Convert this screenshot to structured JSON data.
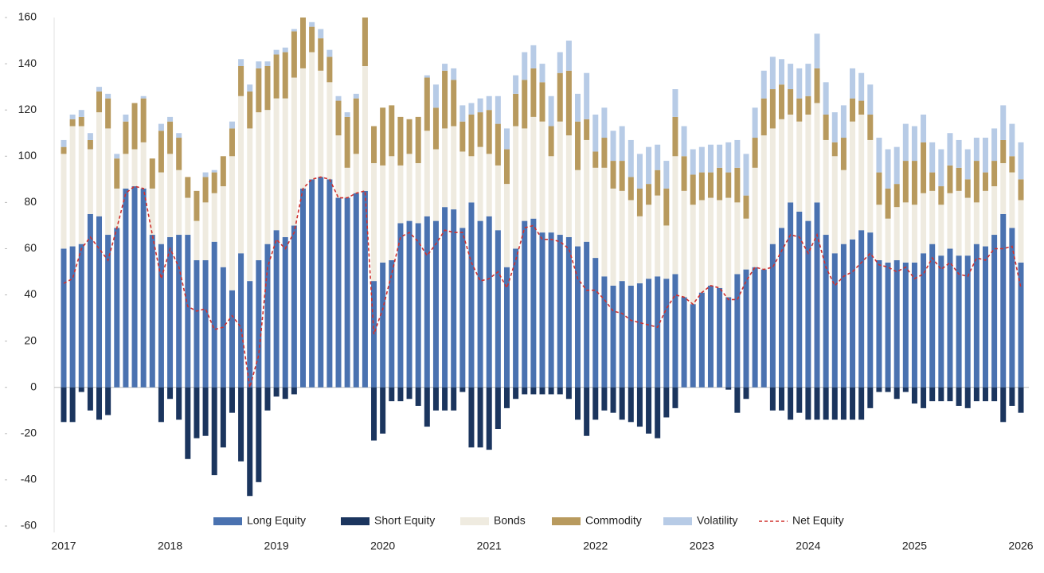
{
  "chart_data": {
    "type": "bar",
    "stacked": true,
    "legend": "bottom",
    "categories": [
      "2017",
      null,
      null,
      null,
      null,
      null,
      null,
      null,
      null,
      null,
      null,
      null,
      "2018",
      null,
      null,
      null,
      null,
      null,
      null,
      null,
      null,
      null,
      null,
      null,
      "2019",
      null,
      null,
      null,
      null,
      null,
      null,
      null,
      null,
      null,
      null,
      null,
      "2020",
      null,
      null,
      null,
      null,
      null,
      null,
      null,
      null,
      null,
      null,
      null,
      "2021",
      null,
      null,
      null,
      null,
      null,
      null,
      null,
      null,
      null,
      null,
      null,
      "2022",
      null,
      null,
      null,
      null,
      null,
      null,
      null,
      null,
      null,
      null,
      null,
      "2023",
      null,
      null,
      null,
      null,
      null,
      null,
      null,
      null,
      null,
      null,
      null,
      "2024",
      null,
      null,
      null,
      null,
      null,
      null,
      null,
      null,
      null,
      null,
      null,
      "2025",
      null,
      null,
      null,
      null,
      null,
      null,
      null,
      null,
      null,
      null,
      null,
      "2026"
    ],
    "ylim": [
      -60,
      160
    ],
    "yticks": [
      -60,
      -40,
      -20,
      0,
      20,
      40,
      60,
      80,
      100,
      120,
      140,
      160
    ],
    "series": [
      {
        "name": "Long Equity",
        "color": "#4a72b0",
        "values": [
          60,
          61,
          62,
          75,
          74,
          66,
          69,
          86,
          87,
          86,
          66,
          62,
          65,
          66,
          66,
          55,
          55,
          63,
          52,
          42,
          58,
          46,
          55,
          62,
          68,
          65,
          70,
          86,
          90,
          91,
          90,
          82,
          82,
          84,
          85,
          46,
          54,
          55,
          71,
          72,
          71,
          74,
          72,
          78,
          77,
          69,
          80,
          72,
          74,
          68,
          52,
          60,
          72,
          73,
          67,
          67,
          66,
          65,
          61,
          63,
          56,
          48,
          44,
          46,
          44,
          45,
          47,
          48,
          47,
          49,
          39,
          36,
          41,
          44,
          43,
          39,
          49,
          51,
          52,
          51,
          62,
          69,
          80,
          76,
          72,
          80,
          66,
          58,
          62,
          64,
          68,
          67,
          55,
          54,
          55,
          54,
          54,
          58,
          62,
          57,
          60,
          57,
          57,
          62,
          61,
          66,
          75,
          69,
          54
        ]
      },
      {
        "name": "Short Equity",
        "color": "#1b355e",
        "values": [
          -15,
          -15,
          -2,
          -10,
          -14,
          -12,
          0,
          0,
          0,
          0,
          0,
          -15,
          -5,
          -14,
          -31,
          -22,
          -21,
          -38,
          -26,
          -11,
          -32,
          -47,
          -41,
          -10,
          -4,
          -5,
          -3,
          0,
          0,
          0,
          0,
          0,
          0,
          0,
          0,
          -23,
          -20,
          -6,
          -6,
          -5,
          -8,
          -17,
          -10,
          -10,
          -10,
          -2,
          -26,
          -26,
          -27,
          -18,
          -9,
          -5,
          -3,
          -3,
          -3,
          -3,
          -3,
          -5,
          -14,
          -21,
          -14,
          -10,
          -11,
          -14,
          -15,
          -17,
          -20,
          -22,
          -13,
          -9,
          0,
          0,
          0,
          0,
          0,
          -1,
          -11,
          -5,
          0,
          0,
          -10,
          -10,
          -14,
          -11,
          -14,
          -14,
          -14,
          -14,
          -14,
          -14,
          -14,
          -9,
          -2,
          -2,
          -5,
          -2,
          -7,
          -9,
          -6,
          -6,
          -6,
          -8,
          -9,
          -6,
          -6,
          -6,
          -15,
          -8,
          -11
        ]
      },
      {
        "name": "Bonds",
        "color": "#efebe0",
        "values": [
          41,
          52,
          51,
          28,
          45,
          46,
          17,
          15,
          16,
          20,
          20,
          31,
          36,
          28,
          16,
          17,
          25,
          21,
          35,
          58,
          68,
          66,
          64,
          58,
          57,
          60,
          64,
          52,
          55,
          46,
          42,
          27,
          13,
          17,
          54,
          51,
          42,
          45,
          25,
          29,
          26,
          37,
          31,
          34,
          36,
          33,
          20,
          32,
          27,
          28,
          36,
          53,
          40,
          44,
          48,
          33,
          49,
          44,
          33,
          44,
          39,
          47,
          42,
          39,
          37,
          29,
          32,
          35,
          23,
          51,
          46,
          43,
          40,
          38,
          38,
          43,
          31,
          22,
          43,
          58,
          50,
          47,
          38,
          39,
          46,
          43,
          41,
          42,
          32,
          51,
          50,
          40,
          24,
          19,
          23,
          26,
          25,
          26,
          23,
          22,
          24,
          28,
          25,
          18,
          24,
          21,
          22,
          24,
          27
        ]
      },
      {
        "name": "Commodity",
        "color": "#b89a5e",
        "values": [
          3,
          3,
          4,
          4,
          9,
          13,
          13,
          14,
          20,
          19,
          13,
          18,
          14,
          14,
          9,
          13,
          11,
          9,
          13,
          12,
          13,
          16,
          19,
          19,
          19,
          20,
          20,
          22,
          11,
          14,
          11,
          15,
          22,
          24,
          21,
          16,
          25,
          22,
          21,
          15,
          20,
          23,
          18,
          25,
          20,
          13,
          18,
          15,
          19,
          18,
          15,
          14,
          21,
          21,
          17,
          13,
          21,
          28,
          21,
          9,
          7,
          13,
          12,
          13,
          10,
          12,
          9,
          11,
          16,
          17,
          15,
          13,
          12,
          11,
          14,
          11,
          15,
          10,
          13,
          16,
          17,
          15,
          11,
          10,
          8,
          15,
          11,
          6,
          14,
          10,
          6,
          11,
          14,
          13,
          10,
          18,
          19,
          22,
          8,
          8,
          12,
          10,
          8,
          18,
          8,
          11,
          10,
          7,
          9
        ]
      },
      {
        "name": "Volatility",
        "color": "#b7cbe6",
        "values": [
          3,
          2,
          3,
          3,
          2,
          2,
          2,
          3,
          0,
          1,
          0,
          3,
          2,
          2,
          0,
          0,
          2,
          1,
          0,
          3,
          3,
          3,
          3,
          2,
          2,
          2,
          1,
          0,
          2,
          4,
          3,
          2,
          2,
          2,
          0,
          0,
          0,
          0,
          0,
          0,
          0,
          1,
          10,
          3,
          5,
          7,
          5,
          6,
          6,
          12,
          9,
          8,
          12,
          10,
          8,
          13,
          9,
          13,
          12,
          20,
          16,
          13,
          13,
          15,
          16,
          15,
          16,
          11,
          12,
          12,
          13,
          11,
          11,
          12,
          10,
          13,
          12,
          18,
          13,
          12,
          14,
          11,
          11,
          13,
          14,
          15,
          14,
          13,
          14,
          13,
          12,
          13,
          15,
          17,
          16,
          16,
          15,
          12,
          13,
          16,
          14,
          12,
          13,
          10,
          15,
          14,
          15,
          14,
          16
        ]
      },
      {
        "name": "Net Equity",
        "type": "line",
        "color": "#d0312d",
        "values": [
          45,
          47,
          60,
          65,
          60,
          55,
          69,
          84,
          87,
          86,
          66,
          47,
          60,
          52,
          35,
          33,
          34,
          25,
          26,
          31,
          26,
          0,
          14,
          52,
          64,
          60,
          67,
          86,
          90,
          91,
          90,
          82,
          82,
          84,
          85,
          23,
          34,
          49,
          65,
          67,
          63,
          57,
          62,
          68,
          67,
          67,
          54,
          46,
          47,
          50,
          43,
          55,
          69,
          70,
          64,
          64,
          63,
          60,
          47,
          42,
          42,
          38,
          33,
          32,
          29,
          28,
          27,
          26,
          34,
          40,
          39,
          36,
          41,
          44,
          43,
          38,
          38,
          46,
          52,
          51,
          52,
          59,
          66,
          65,
          58,
          66,
          52,
          44,
          48,
          50,
          54,
          58,
          53,
          52,
          50,
          52,
          47,
          49,
          56,
          51,
          54,
          49,
          48,
          56,
          55,
          60,
          60,
          61,
          43
        ]
      }
    ]
  }
}
